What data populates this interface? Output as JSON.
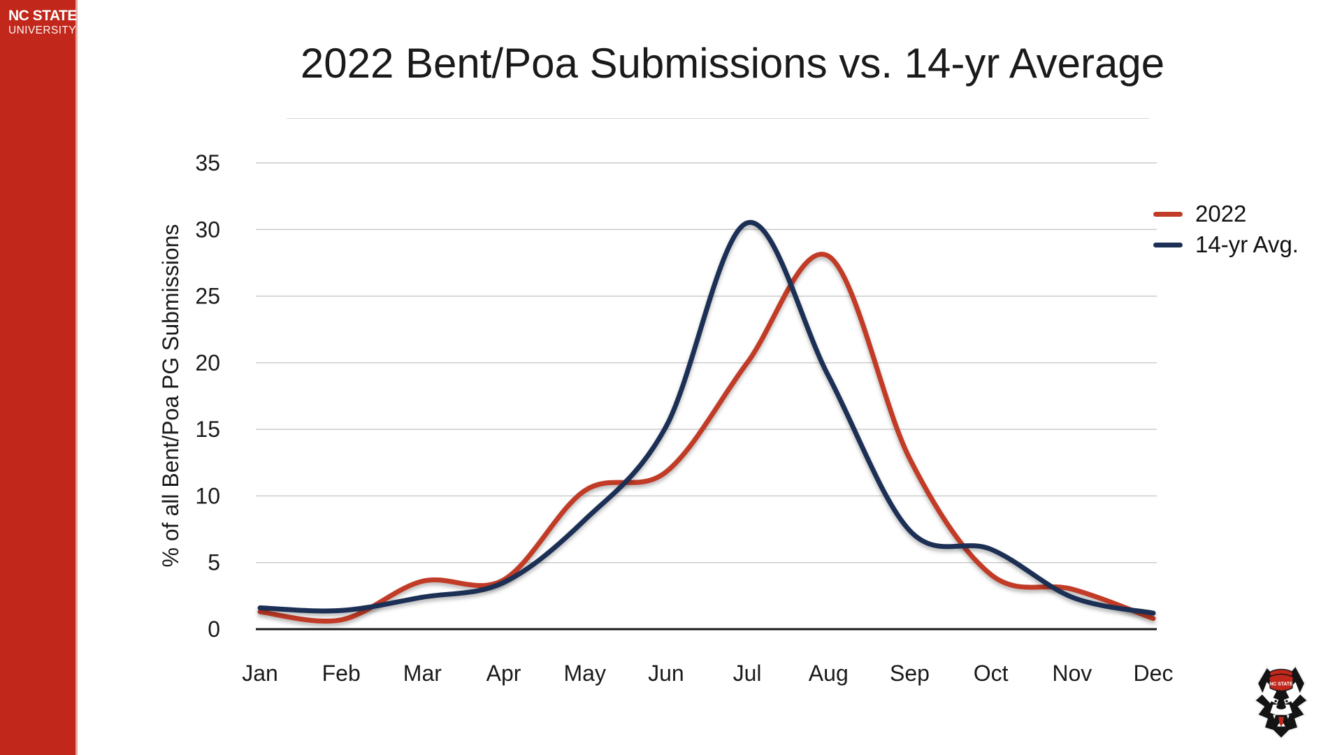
{
  "branding": {
    "logo_line1": "NC STATE",
    "logo_line2": "UNIVERSITY",
    "sidebar_color": "#c1271b",
    "wolf_logo_icon": "nc-state-wolf-head-with-red-cap"
  },
  "slide": {
    "title": "2022 Bent/Poa Submissions vs. 14-yr Average"
  },
  "chart_data": {
    "type": "line",
    "title": "2022 Bent/Poa Submissions vs. 14-yr Average",
    "xlabel": "",
    "ylabel": "% of all Bent/Poa PG Submissions",
    "ylim": [
      0,
      35
    ],
    "yticks": [
      0,
      5,
      10,
      15,
      20,
      25,
      30,
      35
    ],
    "grid": true,
    "gridline_color": "#cccccc",
    "axis_color": "#1a1a1a",
    "legend_position": "right",
    "categories": [
      "Jan",
      "Feb",
      "Mar",
      "Apr",
      "May",
      "Jun",
      "Jul",
      "Aug",
      "Sep",
      "Oct",
      "Nov",
      "Dec"
    ],
    "series": [
      {
        "name": "2022",
        "color": "#c13b26",
        "values": [
          1.3,
          0.7,
          3.6,
          3.7,
          10.4,
          11.8,
          20.0,
          28.0,
          12.8,
          4.1,
          3.0,
          0.8
        ]
      },
      {
        "name": "14-yr Avg.",
        "color": "#1c2f54",
        "values": [
          1.6,
          1.4,
          2.4,
          3.5,
          8.2,
          15.2,
          30.5,
          19.0,
          7.4,
          6.0,
          2.4,
          1.2
        ]
      }
    ]
  }
}
